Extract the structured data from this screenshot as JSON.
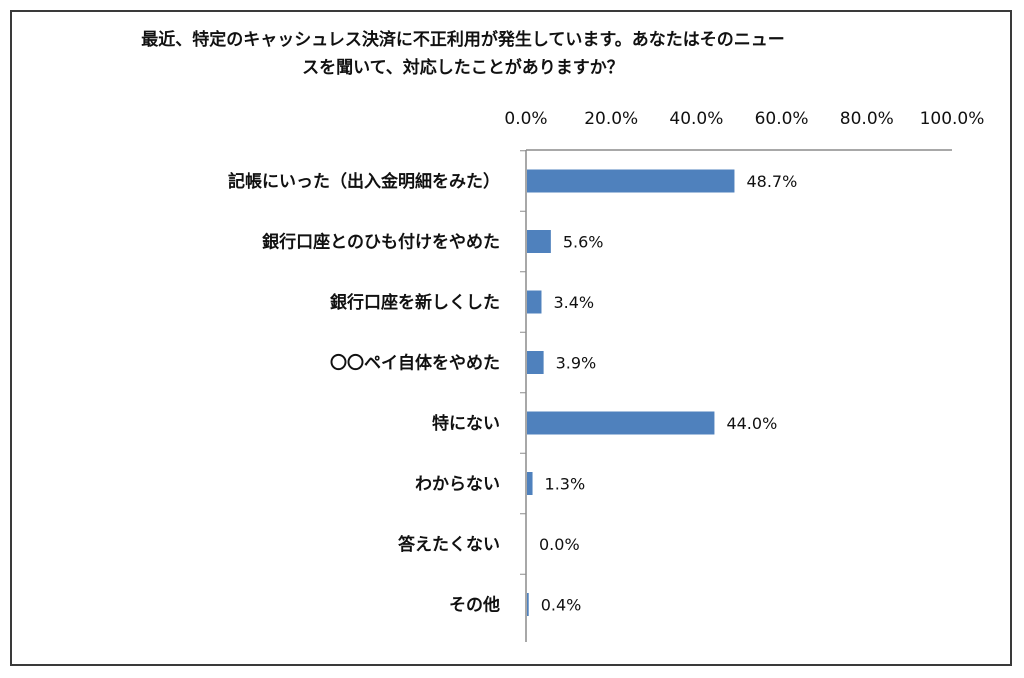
{
  "chart_data": {
    "type": "bar",
    "orientation": "horizontal",
    "title": "最近、特定のキャッシュレス決済に不正利用が発生しています。あなたはそのニュー\nスを聞いて、対応したことがありますか？",
    "categories": [
      "記帳にいった（出入金明細をみた）",
      "銀行口座とのひも付けをやめた",
      "銀行口座を新しくした",
      "〇〇ペイ自体をやめた",
      "特にない",
      "わからない",
      "答えたくない",
      "その他"
    ],
    "values": [
      48.7,
      5.6,
      3.4,
      3.9,
      44.0,
      1.3,
      0.0,
      0.4
    ],
    "value_labels": [
      "48.7%",
      "5.6%",
      "3.4%",
      "3.9%",
      "44.0%",
      "1.3%",
      "0.0%",
      "0.4%"
    ],
    "x_ticks": [
      0,
      20,
      40,
      60,
      80,
      100
    ],
    "x_tick_labels": [
      "0.0%",
      "20.0%",
      "40.0%",
      "60.0%",
      "80.0%",
      "100.0%"
    ],
    "xlim": [
      0,
      100
    ],
    "xlabel": "",
    "ylabel": "",
    "x_axis_position": "top",
    "grid": false,
    "legend": "none",
    "bar_color": "#4f81bd"
  }
}
